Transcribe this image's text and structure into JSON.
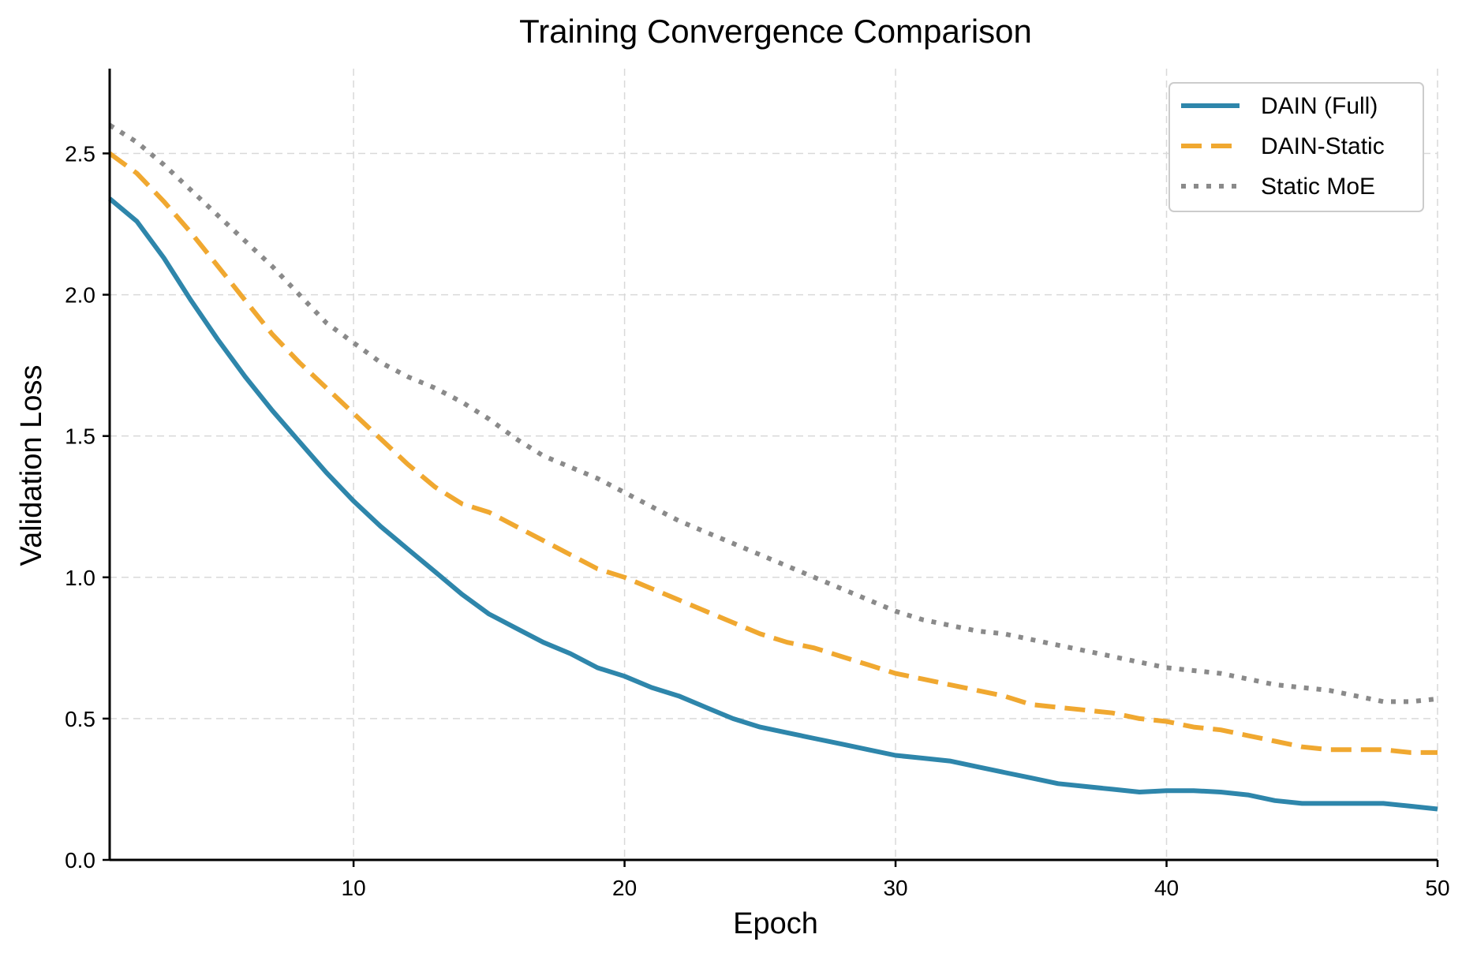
{
  "chart_data": {
    "type": "line",
    "title": "Training Convergence Comparison",
    "xlabel": "Epoch",
    "ylabel": "Validation Loss",
    "xlim": [
      1,
      50
    ],
    "ylim": [
      0,
      2.8
    ],
    "xticks": [
      10,
      20,
      30,
      40,
      50
    ],
    "yticks": [
      0.0,
      0.5,
      1.0,
      1.5,
      2.0,
      2.5
    ],
    "xtick_labels": [
      "10",
      "20",
      "30",
      "40",
      "50"
    ],
    "ytick_labels": [
      "0.0",
      "0.5",
      "1.0",
      "1.5",
      "2.0",
      "2.5"
    ],
    "grid": true,
    "legend_position": "top-right",
    "x": [
      1,
      2,
      3,
      4,
      5,
      6,
      7,
      8,
      9,
      10,
      11,
      12,
      13,
      14,
      15,
      16,
      17,
      18,
      19,
      20,
      21,
      22,
      23,
      24,
      25,
      26,
      27,
      28,
      29,
      30,
      31,
      32,
      33,
      34,
      35,
      36,
      37,
      38,
      39,
      40,
      41,
      42,
      43,
      44,
      45,
      46,
      47,
      48,
      49,
      50
    ],
    "series": [
      {
        "name": "DAIN (Full)",
        "color": "#2e86ab",
        "style": "solid",
        "values": [
          2.34,
          2.26,
          2.13,
          1.98,
          1.84,
          1.71,
          1.59,
          1.48,
          1.37,
          1.27,
          1.18,
          1.1,
          1.02,
          0.94,
          0.87,
          0.82,
          0.77,
          0.73,
          0.68,
          0.65,
          0.61,
          0.58,
          0.54,
          0.5,
          0.47,
          0.45,
          0.43,
          0.41,
          0.39,
          0.37,
          0.36,
          0.35,
          0.33,
          0.31,
          0.29,
          0.27,
          0.26,
          0.25,
          0.24,
          0.245,
          0.245,
          0.24,
          0.23,
          0.21,
          0.2,
          0.2,
          0.2,
          0.2,
          0.19,
          0.18
        ]
      },
      {
        "name": "DAIN-Static",
        "color": "#f0a830",
        "style": "dashed",
        "values": [
          2.5,
          2.43,
          2.33,
          2.22,
          2.1,
          1.98,
          1.86,
          1.76,
          1.67,
          1.58,
          1.49,
          1.4,
          1.32,
          1.26,
          1.23,
          1.18,
          1.13,
          1.08,
          1.03,
          1.0,
          0.96,
          0.92,
          0.88,
          0.84,
          0.8,
          0.77,
          0.75,
          0.72,
          0.69,
          0.66,
          0.64,
          0.62,
          0.6,
          0.58,
          0.55,
          0.54,
          0.53,
          0.52,
          0.5,
          0.49,
          0.47,
          0.46,
          0.44,
          0.42,
          0.4,
          0.39,
          0.39,
          0.39,
          0.38,
          0.38
        ]
      },
      {
        "name": "Static MoE",
        "color": "#8a8a8a",
        "style": "dotted",
        "values": [
          2.6,
          2.54,
          2.46,
          2.37,
          2.28,
          2.19,
          2.1,
          2.0,
          1.9,
          1.83,
          1.76,
          1.71,
          1.67,
          1.62,
          1.56,
          1.49,
          1.43,
          1.39,
          1.35,
          1.3,
          1.25,
          1.2,
          1.16,
          1.12,
          1.08,
          1.04,
          1.0,
          0.96,
          0.92,
          0.88,
          0.85,
          0.83,
          0.81,
          0.8,
          0.78,
          0.76,
          0.74,
          0.72,
          0.7,
          0.68,
          0.67,
          0.66,
          0.64,
          0.62,
          0.61,
          0.6,
          0.58,
          0.56,
          0.56,
          0.57
        ]
      }
    ]
  }
}
